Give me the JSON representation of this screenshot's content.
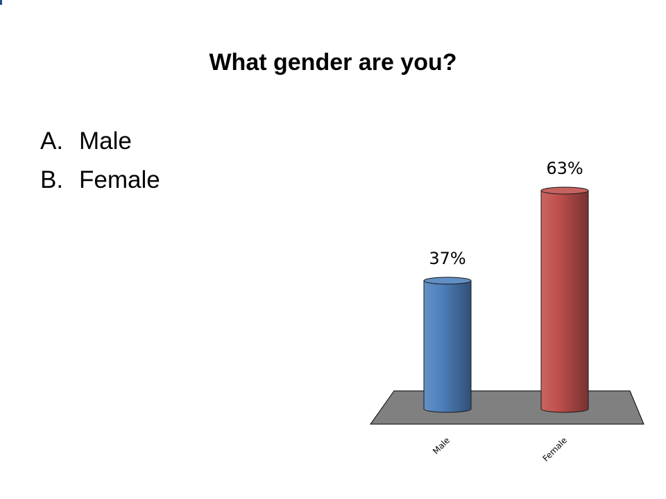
{
  "title": "What gender are you?",
  "options": [
    {
      "letter": "A.",
      "text": "Male"
    },
    {
      "letter": "B.",
      "text": "Female"
    }
  ],
  "colors": {
    "male_bar": "#4f81bd",
    "female_bar": "#c0504d",
    "floor": "#808080"
  },
  "chart_data": {
    "type": "bar",
    "categories": [
      "Male",
      "Female"
    ],
    "values": [
      37,
      63
    ],
    "value_labels": [
      "37%",
      "63%"
    ],
    "unit": "%",
    "style": "3d-cylinder",
    "ylim": [
      0,
      100
    ],
    "grid": false,
    "legend": "none"
  }
}
